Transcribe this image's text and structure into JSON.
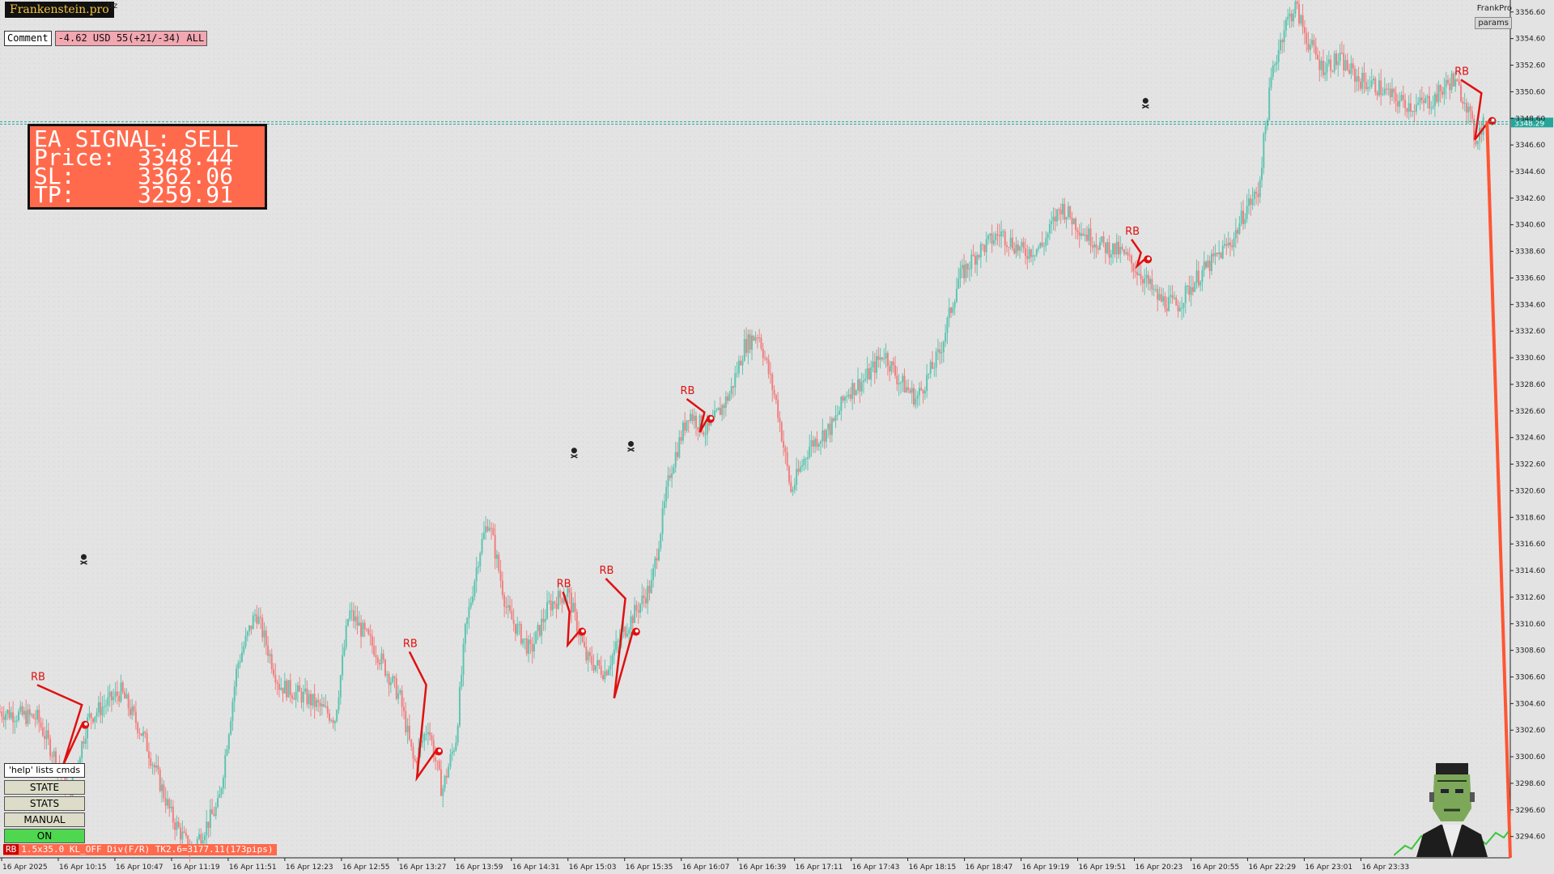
{
  "window": {
    "brand": "Frankenstein.pro",
    "symbol_tag": "Oz",
    "top_right_label": "FrankPro",
    "params_button": "params",
    "comment_label": "Comment",
    "pl_summary": "-4.62 USD 55(+21/-34) ALL"
  },
  "signal": {
    "title": "EA SIGNAL: SELL",
    "rows": [
      {
        "label": "Price:",
        "value": "3348.44"
      },
      {
        "label": "SL:",
        "value": "3362.06"
      },
      {
        "label": "TP:",
        "value": "3259.91"
      }
    ]
  },
  "command_panel": {
    "help": "'help' lists cmds",
    "buttons": [
      "STATE",
      "STATS",
      "MANUAL",
      "ON"
    ]
  },
  "status_bar": {
    "tag": "RB",
    "text": "1.5x35.0 KL_OFF Div(F/R) TK2.6=3177.11(173pips)"
  },
  "current_price_label": "3348.29",
  "marker_label": "RB",
  "colors": {
    "background": "#e3e3e3",
    "bull_candle": "#5fc4b0",
    "bear_candle": "#f08080",
    "pattern_line": "#e01010",
    "tp_line": "#ff5533",
    "price_line": "#26a69a",
    "signal_panel": "#ff6a4d"
  },
  "chart_data": {
    "type": "candlestick",
    "y_axis_ticks": [
      "3356.60",
      "3354.60",
      "3352.60",
      "3350.60",
      "3348.60",
      "3346.60",
      "3344.60",
      "3342.60",
      "3340.60",
      "3338.60",
      "3336.60",
      "3334.60",
      "3332.60",
      "3330.60",
      "3328.60",
      "3326.60",
      "3324.60",
      "3322.60",
      "3320.60",
      "3318.60",
      "3316.60",
      "3314.60",
      "3312.60",
      "3310.60",
      "3308.60",
      "3306.60",
      "3304.60",
      "3302.60",
      "3300.60",
      "3298.60",
      "3296.60",
      "3294.60"
    ],
    "x_axis_ticks": [
      "16 Apr 2025",
      "16 Apr 10:15",
      "16 Apr 10:47",
      "16 Apr 11:19",
      "16 Apr 11:51",
      "16 Apr 12:23",
      "16 Apr 12:55",
      "16 Apr 13:27",
      "16 Apr 13:59",
      "16 Apr 14:31",
      "16 Apr 15:03",
      "16 Apr 15:35",
      "16 Apr 16:07",
      "16 Apr 16:39",
      "16 Apr 17:11",
      "16 Apr 17:43",
      "16 Apr 18:15",
      "16 Apr 18:47",
      "16 Apr 19:19",
      "16 Apr 19:51",
      "16 Apr 20:23",
      "16 Apr 20:55",
      "16 Apr 22:29",
      "16 Apr 23:01",
      "16 Apr 23:33"
    ],
    "ylim": [
      3293.0,
      3357.5
    ],
    "price_path": [
      [
        0,
        3304.0
      ],
      [
        40,
        3303.5
      ],
      [
        75,
        3298.0
      ],
      [
        95,
        3303.5
      ],
      [
        130,
        3305.5
      ],
      [
        155,
        3302.0
      ],
      [
        185,
        3296.0
      ],
      [
        205,
        3293.5
      ],
      [
        235,
        3297.0
      ],
      [
        255,
        3307.5
      ],
      [
        275,
        3311.5
      ],
      [
        300,
        3306.0
      ],
      [
        330,
        3305.0
      ],
      [
        360,
        3303.5
      ],
      [
        375,
        3311.5
      ],
      [
        405,
        3308.5
      ],
      [
        430,
        3305.0
      ],
      [
        445,
        3300.0
      ],
      [
        460,
        3303.0
      ],
      [
        475,
        3298.0
      ],
      [
        490,
        3302.0
      ],
      [
        500,
        3310.0
      ],
      [
        515,
        3316.0
      ],
      [
        525,
        3318.5
      ],
      [
        545,
        3311.5
      ],
      [
        570,
        3308.5
      ],
      [
        590,
        3312.0
      ],
      [
        610,
        3313.0
      ],
      [
        630,
        3308.0
      ],
      [
        650,
        3307.0
      ],
      [
        670,
        3310.0
      ],
      [
        700,
        3313.5
      ],
      [
        720,
        3322.0
      ],
      [
        740,
        3326.5
      ],
      [
        760,
        3325.0
      ],
      [
        785,
        3328.0
      ],
      [
        800,
        3331.5
      ],
      [
        815,
        3332.5
      ],
      [
        835,
        3327.0
      ],
      [
        850,
        3320.5
      ],
      [
        870,
        3324.0
      ],
      [
        895,
        3325.5
      ],
      [
        910,
        3328.0
      ],
      [
        930,
        3329.0
      ],
      [
        950,
        3331.0
      ],
      [
        965,
        3329.0
      ],
      [
        985,
        3327.5
      ],
      [
        1010,
        3331.0
      ],
      [
        1030,
        3336.5
      ],
      [
        1050,
        3338.5
      ],
      [
        1075,
        3340.0
      ],
      [
        1100,
        3338.5
      ],
      [
        1120,
        3339.0
      ],
      [
        1140,
        3342.0
      ],
      [
        1165,
        3340.0
      ],
      [
        1185,
        3339.0
      ],
      [
        1205,
        3338.5
      ],
      [
        1225,
        3337.0
      ],
      [
        1245,
        3335.0
      ],
      [
        1265,
        3334.5
      ],
      [
        1285,
        3336.5
      ],
      [
        1305,
        3338.0
      ],
      [
        1325,
        3339.5
      ],
      [
        1340,
        3342.0
      ],
      [
        1352,
        3343.0
      ],
      [
        1360,
        3348.0
      ],
      [
        1367,
        3352.0
      ],
      [
        1380,
        3355.5
      ],
      [
        1392,
        3357.0
      ],
      [
        1405,
        3354.5
      ],
      [
        1420,
        3352.5
      ],
      [
        1440,
        3353.0
      ],
      [
        1460,
        3351.5
      ],
      [
        1480,
        3351.0
      ],
      [
        1500,
        3350.0
      ],
      [
        1520,
        3349.5
      ],
      [
        1540,
        3350.0
      ],
      [
        1560,
        3351.5
      ],
      [
        1575,
        3350.0
      ],
      [
        1585,
        3347.0
      ],
      [
        1595,
        3348.4
      ]
    ],
    "current_price": 3348.29,
    "rb_patterns": [
      {
        "label": "RB",
        "x": [
          40,
          88,
          68,
          88
        ],
        "y": [
          3306.0,
          3304.5,
          3300.0,
          3303.0
        ]
      },
      {
        "label": "RB",
        "x": [
          440,
          458,
          448,
          468
        ],
        "y": [
          3308.5,
          3306.0,
          3299.0,
          3301.0
        ]
      },
      {
        "label": "RB",
        "x": [
          605,
          612,
          610,
          622
        ],
        "y": [
          3313.0,
          3311.5,
          3309.0,
          3310.0
        ]
      },
      {
        "label": "RB",
        "x": [
          651,
          672,
          660,
          680
        ],
        "y": [
          3314.0,
          3312.5,
          3305.0,
          3310.0
        ]
      },
      {
        "label": "RB",
        "x": [
          738,
          757,
          752,
          760
        ],
        "y": [
          3327.5,
          3326.5,
          3325.0,
          3326.0
        ]
      },
      {
        "label": "RB",
        "x": [
          1216,
          1226,
          1222,
          1230
        ],
        "y": [
          3339.5,
          3338.5,
          3337.5,
          3338.0
        ]
      },
      {
        "label": "RB",
        "x": [
          1570,
          1592,
          1585,
          1600
        ],
        "y": [
          3351.5,
          3350.5,
          3347.0,
          3348.4
        ]
      }
    ],
    "skulls": [
      [
        90,
        3315.5
      ],
      [
        617,
        3323.5
      ],
      [
        678,
        3324.0
      ],
      [
        1231,
        3349.8
      ]
    ],
    "tp_projection": {
      "from": [
        1598,
        3348.4
      ],
      "to": [
        1623,
        3293.0
      ]
    }
  }
}
